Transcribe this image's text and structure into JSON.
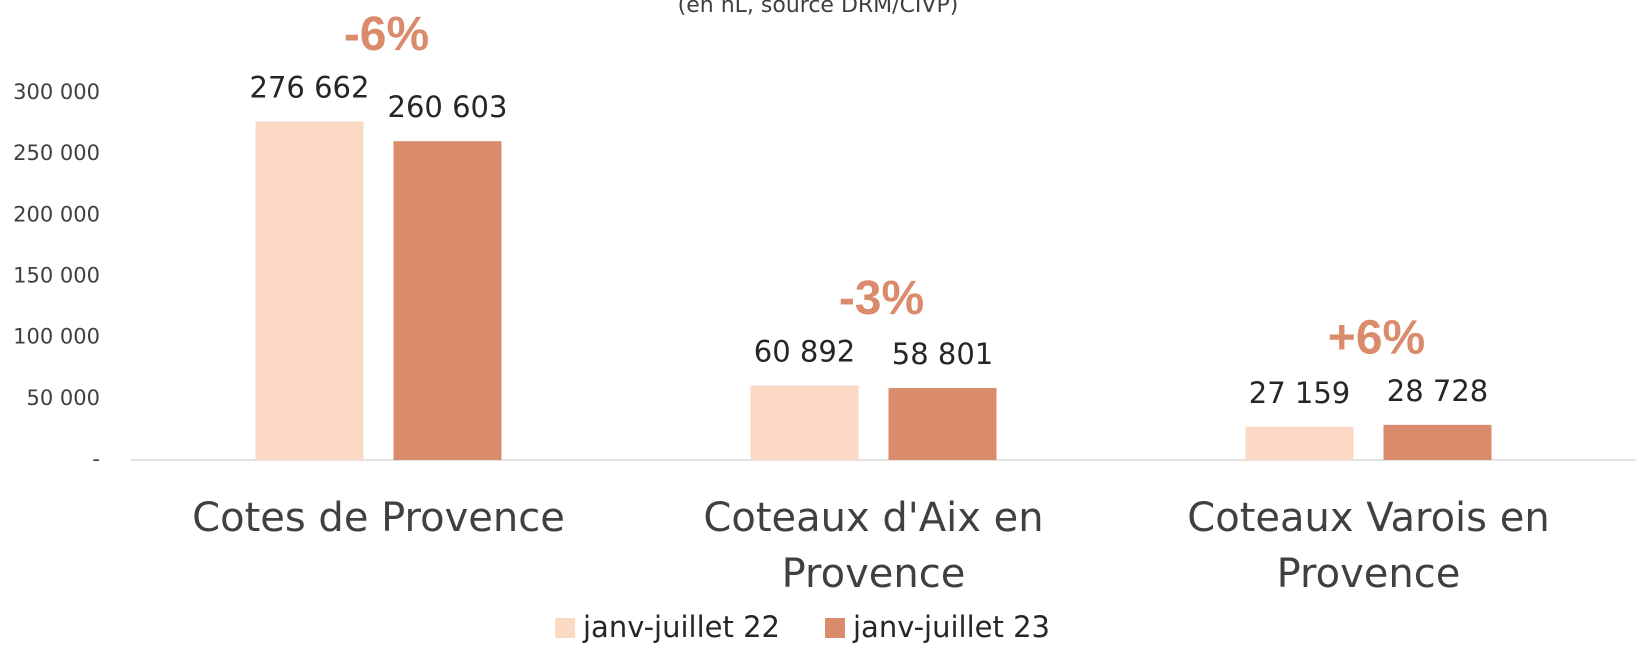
{
  "chart_data": {
    "type": "bar",
    "subtitle": "(en hL, source DRM/CIVP)",
    "categories": [
      "Cotes de Provence",
      "Coteaux d'Aix en Provence",
      "Coteaux Varois en Provence"
    ],
    "series": [
      {
        "name": "janv-juillet 22",
        "color": "#fbd9c5",
        "values": [
          276662,
          60892,
          27159
        ],
        "value_labels": [
          "276 662",
          "60 892",
          "27 159"
        ]
      },
      {
        "name": "janv-juillet 23",
        "color": "#d98b6c",
        "values": [
          260603,
          58801,
          28728
        ],
        "value_labels": [
          "260 603",
          "58 801",
          "28 728"
        ]
      }
    ],
    "annotations": [
      "-6%",
      "-3%",
      "+6%"
    ],
    "annotation_color": "#d98b6c",
    "ylim": [
      0,
      300000
    ],
    "yticks": [
      {
        "value": 0,
        "label": "-"
      },
      {
        "value": 50000,
        "label": "50 000"
      },
      {
        "value": 100000,
        "label": "100 000"
      },
      {
        "value": 150000,
        "label": "150 000"
      },
      {
        "value": 200000,
        "label": "200 000"
      },
      {
        "value": 250000,
        "label": "250 000"
      },
      {
        "value": 300000,
        "label": "300 000"
      }
    ],
    "grid": false,
    "legend": "bottom"
  }
}
